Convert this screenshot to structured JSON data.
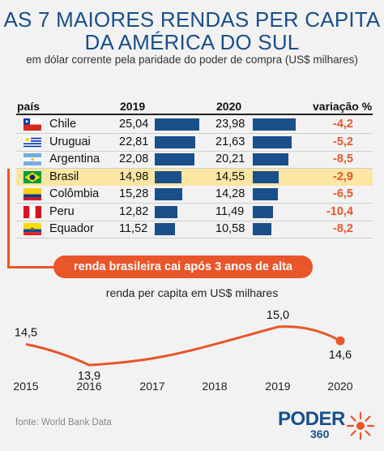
{
  "header": {
    "title_line1": "AS 7 MAIORES RENDAS PER CAPITA",
    "title_line2": "DA AMÉRICA DO SUL",
    "subtitle": "em dólar corrente pela paridade do poder de compra (US$ milhares)"
  },
  "table": {
    "col_country": "país",
    "col_2019": "2019",
    "col_2020": "2020",
    "col_var": "variação %",
    "rows": [
      {
        "country": "Chile",
        "v2019": "25,04",
        "v2020": "23,98",
        "n2019": 25.04,
        "n2020": 23.98,
        "var": "-4,2",
        "flag": "chile-flag-icon",
        "highlight": false
      },
      {
        "country": "Uruguai",
        "v2019": "22,81",
        "v2020": "21,63",
        "n2019": 22.81,
        "n2020": 21.63,
        "var": "-5,2",
        "flag": "uruguay-flag-icon",
        "highlight": false
      },
      {
        "country": "Argentina",
        "v2019": "22,08",
        "v2020": "20,21",
        "n2019": 22.08,
        "n2020": 20.21,
        "var": "-8,5",
        "flag": "argentina-flag-icon",
        "highlight": false
      },
      {
        "country": "Brasil",
        "v2019": "14,98",
        "v2020": "14,55",
        "n2019": 14.98,
        "n2020": 14.55,
        "var": "-2,9",
        "flag": "brazil-flag-icon",
        "highlight": true
      },
      {
        "country": "Colômbia",
        "v2019": "15,28",
        "v2020": "14,28",
        "n2019": 15.28,
        "n2020": 14.28,
        "var": "-6,5",
        "flag": "colombia-flag-icon",
        "highlight": false
      },
      {
        "country": "Peru",
        "v2019": "12,82",
        "v2020": "11,49",
        "n2019": 12.82,
        "n2020": 11.49,
        "var": "-10,4",
        "flag": "peru-flag-icon",
        "highlight": false
      },
      {
        "country": "Equador",
        "v2019": "11,52",
        "v2020": "10,58",
        "n2019": 11.52,
        "n2020": 10.58,
        "var": "-8,2",
        "flag": "ecuador-flag-icon",
        "highlight": false
      }
    ]
  },
  "callout": "renda brasileira cai após 3 anos de alta",
  "chart_data": [
    {
      "type": "bar",
      "categories": [
        "Chile",
        "Uruguai",
        "Argentina",
        "Brasil",
        "Colômbia",
        "Peru",
        "Equador"
      ],
      "series": [
        {
          "name": "2019",
          "values": [
            25.04,
            22.81,
            22.08,
            14.98,
            15.28,
            12.82,
            11.52
          ]
        },
        {
          "name": "2020",
          "values": [
            23.98,
            21.63,
            20.21,
            14.55,
            14.28,
            11.49,
            10.58
          ]
        }
      ],
      "variation_pct": [
        -4.2,
        -5.2,
        -8.5,
        -2.9,
        -6.5,
        -10.4,
        -8.2
      ],
      "title": "AS 7 MAIORES RENDAS PER CAPITA DA AMÉRICA DO SUL",
      "subtitle": "em dólar corrente pela paridade do poder de compra (US$ milhares)",
      "orientation": "horizontal",
      "bar_color": "#1a4f8a"
    },
    {
      "type": "line",
      "title": "renda per capita em US$ milhares",
      "x": [
        "2015",
        "2016",
        "2017",
        "2018",
        "2019",
        "2020"
      ],
      "series": [
        {
          "values": [
            14.5,
            13.9,
            null,
            null,
            15.0,
            14.6
          ]
        }
      ],
      "labeled_points": [
        {
          "x": "2015",
          "y": 14.5,
          "label": "14,5"
        },
        {
          "x": "2016",
          "y": 13.9,
          "label": "13,9"
        },
        {
          "x": "2019",
          "y": 15.0,
          "label": "15,0"
        },
        {
          "x": "2020",
          "y": 14.6,
          "label": "14,6"
        }
      ],
      "ylim": [
        13.7,
        15.2
      ],
      "grid": false,
      "line_color": "#e8562a"
    }
  ],
  "footer": {
    "source": "fonte: World Bank Data",
    "logo_text": "PODER",
    "logo_number": "360"
  }
}
